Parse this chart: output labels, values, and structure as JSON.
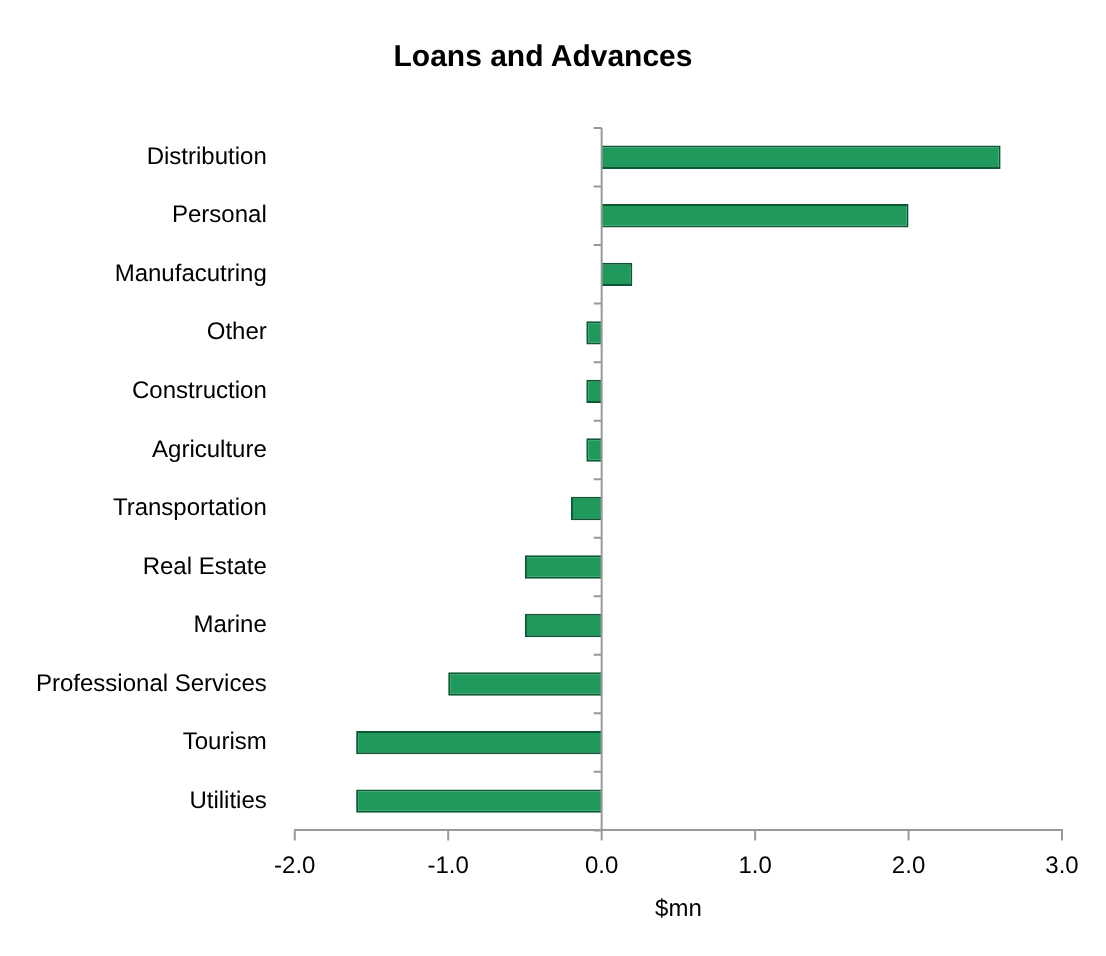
{
  "chart_data": {
    "type": "bar",
    "orientation": "horizontal",
    "title": "Loans and Advances",
    "xlabel": "$mn",
    "categories": [
      "Distribution",
      "Personal",
      "Manufacutring",
      "Other",
      "Construction",
      "Agriculture",
      "Transportation",
      "Real Estate",
      "Marine",
      "Professional Services",
      "Tourism",
      "Utilities"
    ],
    "values": [
      2.6,
      2.0,
      0.2,
      -0.1,
      -0.1,
      -0.1,
      -0.2,
      -0.5,
      -0.5,
      -1.0,
      -1.6,
      -1.6
    ],
    "color": "#1f9a5c",
    "xlim": [
      -2,
      3
    ],
    "xticks": [
      {
        "value": -2,
        "label": "-2.0"
      },
      {
        "value": -1,
        "label": "-1.0"
      },
      {
        "value": 0,
        "label": "0.0"
      },
      {
        "value": 1,
        "label": "1.0"
      },
      {
        "value": 2,
        "label": "2.0"
      },
      {
        "value": 3,
        "label": "3.0"
      }
    ],
    "legend": false
  }
}
